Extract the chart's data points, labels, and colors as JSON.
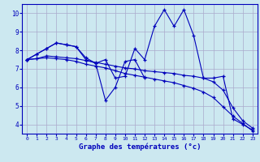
{
  "bg_color": "#cce8f0",
  "grid_color": "#aaaacc",
  "line_color": "#0000bb",
  "xlabel": "Graphe des températures (°c)",
  "xlim": [
    -0.5,
    23.5
  ],
  "ylim": [
    3.5,
    10.5
  ],
  "yticks": [
    4,
    5,
    6,
    7,
    8,
    9,
    10
  ],
  "xticks": [
    0,
    1,
    2,
    3,
    4,
    5,
    6,
    7,
    8,
    9,
    10,
    11,
    12,
    13,
    14,
    15,
    16,
    17,
    18,
    19,
    20,
    21,
    22,
    23
  ],
  "series": [
    [
      7.5,
      7.8,
      8.1,
      8.4,
      8.3,
      8.2,
      7.5,
      7.3,
      7.5,
      6.5,
      6.6,
      8.1,
      7.5,
      9.3,
      10.2,
      9.3,
      10.2,
      8.8,
      6.5,
      6.5,
      6.6,
      4.3,
      4.0,
      3.7
    ],
    [
      7.5,
      7.8,
      8.1,
      8.4,
      8.3,
      8.2,
      7.6,
      7.3,
      5.3,
      6.0,
      7.4,
      7.5,
      6.5,
      null,
      null,
      null,
      null,
      null,
      null,
      null,
      null,
      null,
      null,
      null
    ],
    [
      7.5,
      7.55,
      7.7,
      7.65,
      7.6,
      7.55,
      7.45,
      7.35,
      7.25,
      7.15,
      7.05,
      7.0,
      6.9,
      6.85,
      6.8,
      6.75,
      6.65,
      6.6,
      6.5,
      6.3,
      5.85,
      4.9,
      4.2,
      3.8
    ],
    [
      7.5,
      7.55,
      7.6,
      7.55,
      7.5,
      7.4,
      7.25,
      7.15,
      7.05,
      6.9,
      6.75,
      6.65,
      6.55,
      6.45,
      6.35,
      6.25,
      6.1,
      5.95,
      5.75,
      5.45,
      4.95,
      4.45,
      4.05,
      3.65
    ]
  ]
}
